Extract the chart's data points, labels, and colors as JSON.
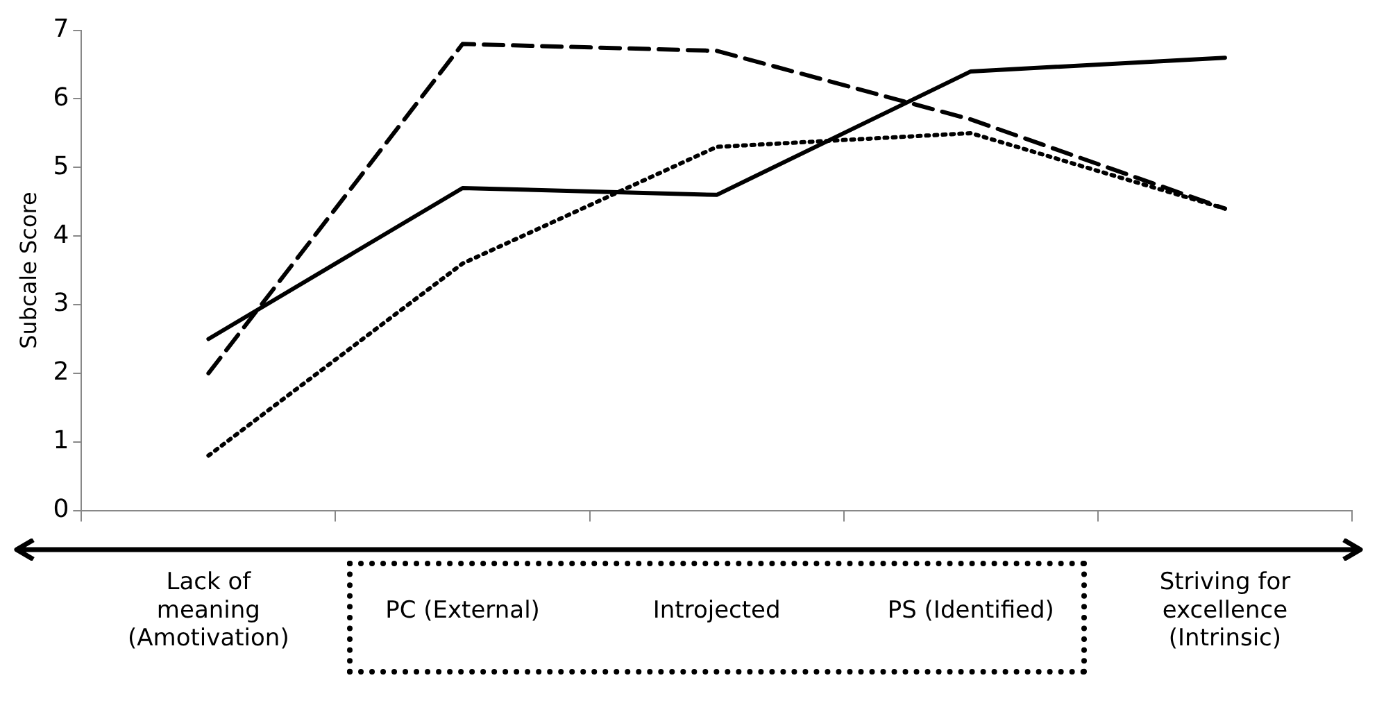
{
  "chart_data": {
    "type": "line",
    "ylabel": "Subcale Score",
    "categories": [
      "Lack of\nmeaning\n(Amotivation)",
      "PC (External)",
      "Introjected",
      "PS (Identified)",
      "Striving for\nexcellence\n(Intrinsic)"
    ],
    "series": [
      {
        "color": "#000000",
        "line_style": "solid",
        "values": [
          2.5,
          4.7,
          4.6,
          6.4,
          6.6
        ]
      },
      {
        "color": "#000000",
        "line_style": "dashed",
        "values": [
          2.0,
          6.8,
          6.7,
          5.7,
          4.4
        ]
      },
      {
        "color": "#000000",
        "line_style": "dotted",
        "values": [
          0.8,
          3.6,
          5.3,
          5.5,
          4.4
        ]
      }
    ],
    "ylim": [
      0,
      7
    ],
    "yticks": [
      0,
      1,
      2,
      3,
      4,
      5,
      6,
      7
    ],
    "grid": false,
    "legend": false,
    "marker": "none"
  }
}
